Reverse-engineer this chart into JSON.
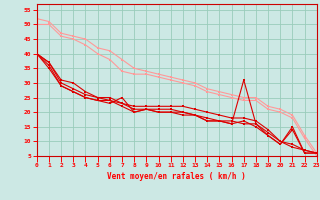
{
  "xlabel": "Vent moyen/en rafales ( km/h )",
  "xlim": [
    0,
    23
  ],
  "ylim": [
    5,
    57
  ],
  "yticks": [
    5,
    10,
    15,
    20,
    25,
    30,
    35,
    40,
    45,
    50,
    55
  ],
  "xticks": [
    0,
    1,
    2,
    3,
    4,
    5,
    6,
    7,
    8,
    9,
    10,
    11,
    12,
    13,
    14,
    15,
    16,
    17,
    18,
    19,
    20,
    21,
    22,
    23
  ],
  "bg_color": "#cce8e4",
  "grid_color": "#99ccbb",
  "series_light": [
    {
      "x": [
        0,
        1,
        2,
        3,
        4,
        5,
        6,
        7,
        8,
        9,
        10,
        11,
        12,
        13,
        14,
        15,
        16,
        17,
        18,
        19,
        20,
        21,
        22,
        23
      ],
      "y": [
        52,
        51,
        47,
        46,
        45,
        42,
        41,
        38,
        35,
        34,
        33,
        32,
        31,
        30,
        28,
        27,
        26,
        25,
        25,
        22,
        21,
        19,
        12,
        6
      ]
    },
    {
      "x": [
        0,
        1,
        2,
        3,
        4,
        5,
        6,
        7,
        8,
        9,
        10,
        11,
        12,
        13,
        14,
        15,
        16,
        17,
        18,
        19,
        20,
        21,
        22,
        23
      ],
      "y": [
        50,
        50,
        46,
        45,
        43,
        40,
        38,
        34,
        33,
        33,
        32,
        31,
        30,
        29,
        27,
        26,
        25,
        24,
        24,
        21,
        20,
        18,
        11,
        5
      ]
    }
  ],
  "series_dark": [
    {
      "x": [
        0,
        1,
        2,
        3,
        4,
        5,
        6,
        7,
        8,
        9,
        10,
        11,
        12,
        13,
        14,
        15,
        16,
        17,
        18,
        19,
        20,
        21,
        22,
        23
      ],
      "y": [
        40,
        37,
        31,
        30,
        27,
        25,
        25,
        23,
        22,
        22,
        22,
        22,
        22,
        21,
        20,
        19,
        18,
        18,
        17,
        14,
        10,
        9,
        7,
        6
      ]
    },
    {
      "x": [
        0,
        1,
        2,
        3,
        4,
        5,
        6,
        7,
        8,
        9,
        10,
        11,
        12,
        13,
        14,
        15,
        16,
        17,
        18,
        19,
        20,
        21,
        22,
        23
      ],
      "y": [
        40,
        37,
        30,
        28,
        26,
        25,
        24,
        23,
        21,
        21,
        21,
        21,
        20,
        19,
        18,
        17,
        17,
        16,
        16,
        13,
        10,
        8,
        7,
        6
      ]
    },
    {
      "x": [
        0,
        1,
        2,
        3,
        4,
        5,
        6,
        7,
        8,
        9,
        10,
        11,
        12,
        13,
        14,
        15,
        16,
        17,
        18,
        19,
        20,
        21,
        22,
        23
      ],
      "y": [
        40,
        36,
        29,
        27,
        25,
        24,
        24,
        22,
        20,
        21,
        20,
        20,
        20,
        19,
        17,
        17,
        16,
        31,
        16,
        12,
        9,
        14,
        6,
        6
      ]
    },
    {
      "x": [
        0,
        1,
        2,
        3,
        4,
        5,
        6,
        7,
        8,
        9,
        10,
        11,
        12,
        13,
        14,
        15,
        16,
        17,
        18,
        19,
        20,
        21,
        22,
        23
      ],
      "y": [
        40,
        35,
        29,
        27,
        25,
        24,
        23,
        25,
        20,
        21,
        20,
        20,
        19,
        19,
        17,
        17,
        16,
        17,
        15,
        12,
        9,
        15,
        6,
        6
      ]
    }
  ],
  "color_light": "#ff9999",
  "color_dark": "#dd0000",
  "lw": 0.8,
  "ms": 2.0
}
